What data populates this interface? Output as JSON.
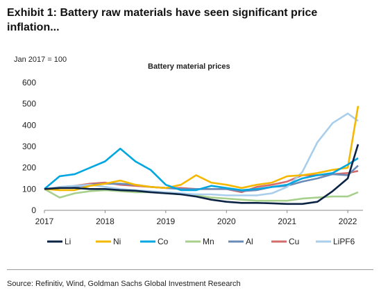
{
  "exhibit_title": "Exhibit 1: Battery raw materials have seen significant price inflation...",
  "source": "Source: Refinitiv, Wind, Goldman Sachs Global Investment Research",
  "chart_data": {
    "type": "line",
    "title": "Battery material prices",
    "unit_label": "Jan 2017 = 100",
    "xlabel": "",
    "ylabel": "",
    "xlim": [
      2017,
      2022.25
    ],
    "ylim": [
      0,
      600
    ],
    "x_ticks": [
      2017,
      2018,
      2019,
      2020,
      2021,
      2022
    ],
    "y_ticks": [
      0,
      100,
      200,
      300,
      400,
      500,
      600
    ],
    "grid": false,
    "legend_position": "bottom",
    "x": [
      2017.0,
      2017.25,
      2017.5,
      2017.75,
      2018.0,
      2018.25,
      2018.5,
      2018.75,
      2019.0,
      2019.25,
      2019.5,
      2019.75,
      2020.0,
      2020.25,
      2020.5,
      2020.75,
      2021.0,
      2021.25,
      2021.5,
      2021.75,
      2022.0,
      2022.17
    ],
    "series": [
      {
        "name": "Li",
        "color": "#0b2344",
        "values": [
          100,
          105,
          105,
          100,
          100,
          95,
          92,
          85,
          80,
          75,
          65,
          50,
          40,
          35,
          35,
          33,
          30,
          30,
          40,
          90,
          150,
          310
        ]
      },
      {
        "name": "Ni",
        "color": "#f5b800",
        "values": [
          100,
          95,
          95,
          115,
          125,
          140,
          120,
          110,
          105,
          120,
          165,
          130,
          120,
          105,
          120,
          130,
          160,
          165,
          175,
          190,
          200,
          490
        ]
      },
      {
        "name": "Co",
        "color": "#00a6e0",
        "values": [
          100,
          160,
          170,
          200,
          230,
          290,
          230,
          190,
          120,
          95,
          95,
          115,
          105,
          95,
          100,
          110,
          120,
          150,
          165,
          175,
          215,
          245
        ]
      },
      {
        "name": "Mn",
        "color": "#a8d08d",
        "values": [
          100,
          60,
          80,
          90,
          95,
          90,
          85,
          85,
          80,
          75,
          70,
          60,
          55,
          50,
          45,
          45,
          45,
          55,
          60,
          65,
          65,
          85
        ]
      },
      {
        "name": "Al",
        "color": "#6a8ab8",
        "values": [
          100,
          105,
          110,
          120,
          125,
          125,
          120,
          110,
          105,
          100,
          100,
          100,
          100,
          90,
          95,
          110,
          115,
          135,
          150,
          170,
          165,
          210
        ]
      },
      {
        "name": "Cu",
        "color": "#d46a6a",
        "values": [
          100,
          105,
          115,
          125,
          130,
          120,
          115,
          110,
          105,
          105,
          100,
          100,
          100,
          85,
          110,
          120,
          135,
          165,
          165,
          170,
          175,
          185
        ]
      },
      {
        "name": "LiPF6",
        "color": "#a9ceec",
        "values": [
          100,
          110,
          115,
          120,
          110,
          100,
          95,
          90,
          85,
          80,
          75,
          75,
          70,
          70,
          70,
          80,
          110,
          180,
          320,
          410,
          455,
          420
        ]
      }
    ]
  }
}
